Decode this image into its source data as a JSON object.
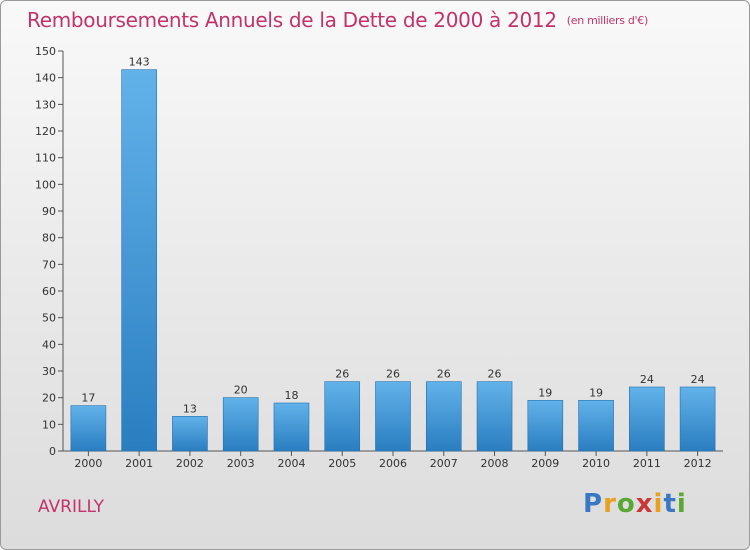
{
  "title": "Remboursements Annuels de la Dette de 2000 à 2012",
  "subtitle": "(en milliers d'€)",
  "commune": "AVRILLY",
  "logo": {
    "letters": [
      "P",
      "r",
      "o",
      "x",
      "i",
      "t",
      "i"
    ],
    "colors": [
      "#3a78c4",
      "#e8a020",
      "#58a832",
      "#c93838",
      "#e8a020",
      "#3a78c4",
      "#58a832"
    ]
  },
  "colors": {
    "title": "#c2336b",
    "bar_light": "#62b2ea",
    "bar_dark": "#2a7ec0"
  },
  "chart_data": {
    "type": "bar",
    "categories": [
      "2000",
      "2001",
      "2002",
      "2003",
      "2004",
      "2005",
      "2006",
      "2007",
      "2008",
      "2009",
      "2010",
      "2011",
      "2012"
    ],
    "values": [
      17,
      143,
      13,
      20,
      18,
      26,
      26,
      26,
      26,
      19,
      19,
      24,
      24
    ],
    "ylim": [
      0,
      150
    ],
    "yticks": [
      0,
      10,
      20,
      30,
      40,
      50,
      60,
      70,
      80,
      90,
      100,
      110,
      120,
      130,
      140,
      150
    ],
    "grid": false,
    "data_labels": true
  }
}
